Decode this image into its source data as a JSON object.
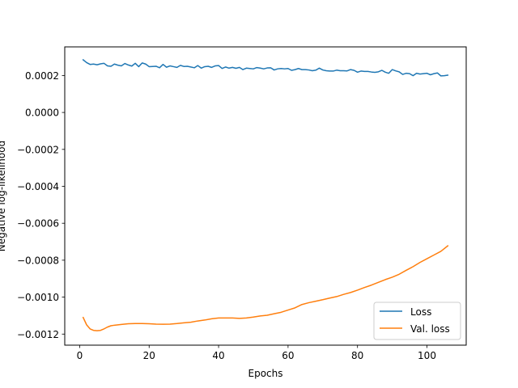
{
  "chart_data": {
    "type": "line",
    "title": "",
    "xlabel": "Epochs",
    "ylabel": "Negative log-likelihood",
    "xlim": [
      -4.3,
      111.3
    ],
    "ylim": [
      -0.00126,
      0.000355
    ],
    "xticks": [
      0,
      20,
      40,
      60,
      80,
      100
    ],
    "yticks": [
      -0.0012,
      -0.001,
      -0.0008,
      -0.0006,
      -0.0004,
      -0.0002,
      0.0,
      0.0002
    ],
    "ytick_labels": [
      "−0.0012",
      "−0.0010",
      "−0.0008",
      "−0.0006",
      "−0.0004",
      "−0.0002",
      "0.0000",
      "0.0002"
    ],
    "legend_position": "lower right",
    "grid": false,
    "series": [
      {
        "name": "Loss",
        "color": "#1f77b4",
        "x": [
          1,
          2,
          3,
          4,
          5,
          6,
          7,
          8,
          9,
          10,
          11,
          12,
          13,
          14,
          15,
          16,
          17,
          18,
          19,
          20,
          21,
          22,
          23,
          24,
          25,
          26,
          27,
          28,
          29,
          30,
          31,
          32,
          33,
          34,
          35,
          36,
          37,
          38,
          39,
          40,
          41,
          42,
          43,
          44,
          45,
          46,
          47,
          48,
          49,
          50,
          51,
          52,
          53,
          54,
          55,
          56,
          57,
          58,
          59,
          60,
          61,
          62,
          63,
          64,
          65,
          66,
          67,
          68,
          69,
          70,
          71,
          72,
          73,
          74,
          75,
          76,
          77,
          78,
          79,
          80,
          81,
          82,
          83,
          84,
          85,
          86,
          87,
          88,
          89,
          90,
          91,
          92,
          93,
          94,
          95,
          96,
          97,
          98,
          99,
          100,
          101,
          102,
          103,
          104,
          105,
          106
        ],
        "values": [
          0.000285,
          0.00027,
          0.00026,
          0.000262,
          0.000258,
          0.000263,
          0.000266,
          0.000252,
          0.00025,
          0.000262,
          0.000256,
          0.000252,
          0.000265,
          0.000257,
          0.000251,
          0.000266,
          0.000248,
          0.000268,
          0.000262,
          0.000248,
          0.000249,
          0.00025,
          0.000242,
          0.00026,
          0.000245,
          0.000252,
          0.000248,
          0.000244,
          0.000255,
          0.000249,
          0.00025,
          0.000246,
          0.000242,
          0.000254,
          0.00024,
          0.000248,
          0.00025,
          0.000244,
          0.000252,
          0.000254,
          0.000238,
          0.000246,
          0.00024,
          0.000244,
          0.000239,
          0.000244,
          0.000232,
          0.00024,
          0.000238,
          0.000236,
          0.000243,
          0.00024,
          0.000236,
          0.000241,
          0.000242,
          0.00023,
          0.000236,
          0.000238,
          0.000236,
          0.000238,
          0.000228,
          0.000232,
          0.000238,
          0.000232,
          0.000232,
          0.00023,
          0.000226,
          0.000229,
          0.00024,
          0.00023,
          0.000226,
          0.000224,
          0.000224,
          0.000229,
          0.000226,
          0.000226,
          0.000225,
          0.000232,
          0.000228,
          0.000218,
          0.000224,
          0.000222,
          0.000222,
          0.000219,
          0.000217,
          0.00022,
          0.000228,
          0.000218,
          0.000212,
          0.000232,
          0.000225,
          0.00022,
          0.000206,
          0.000212,
          0.00021,
          0.000199,
          0.000212,
          0.000208,
          0.00021,
          0.000212,
          0.000204,
          0.00021,
          0.000214,
          0.000198,
          0.000199,
          0.000202
        ]
      },
      {
        "name": "Val. loss",
        "color": "#ff7f0e",
        "x": [
          1,
          2,
          3,
          4,
          5,
          6,
          7,
          8,
          9,
          10,
          12,
          14,
          16,
          18,
          20,
          22,
          24,
          26,
          28,
          30,
          32,
          34,
          36,
          38,
          40,
          42,
          44,
          46,
          48,
          50,
          52,
          54,
          56,
          58,
          60,
          62,
          64,
          66,
          68,
          70,
          72,
          74,
          76,
          78,
          80,
          82,
          84,
          86,
          88,
          90,
          92,
          94,
          96,
          98,
          100,
          102,
          104,
          106
        ],
        "values": [
          -0.00111,
          -0.00115,
          -0.001172,
          -0.00118,
          -0.001182,
          -0.00118,
          -0.001172,
          -0.001162,
          -0.001155,
          -0.001152,
          -0.001148,
          -0.001144,
          -0.001143,
          -0.001143,
          -0.001144,
          -0.001146,
          -0.001147,
          -0.001146,
          -0.001143,
          -0.001139,
          -0.001136,
          -0.001129,
          -0.001124,
          -0.001117,
          -0.001113,
          -0.001113,
          -0.001113,
          -0.001115,
          -0.001113,
          -0.001108,
          -0.001102,
          -0.001098,
          -0.00109,
          -0.001082,
          -0.00107,
          -0.001058,
          -0.00104,
          -0.00103,
          -0.001022,
          -0.001014,
          -0.001005,
          -0.000997,
          -0.000985,
          -0.000975,
          -0.000962,
          -0.000948,
          -0.000935,
          -0.00092,
          -0.000905,
          -0.000892,
          -0.000876,
          -0.000855,
          -0.000835,
          -0.000812,
          -0.000792,
          -0.000772,
          -0.000752,
          -0.000722
        ]
      }
    ]
  }
}
